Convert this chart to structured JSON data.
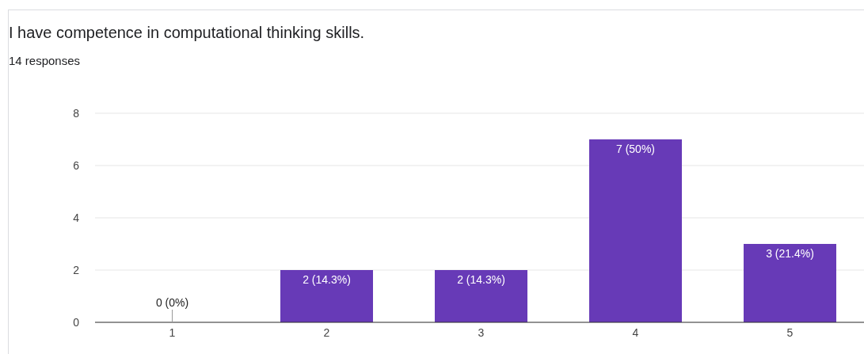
{
  "chart_data": {
    "type": "bar",
    "title": "I have competence in computational thinking skills.",
    "subtitle": "14 responses",
    "categories": [
      "1",
      "2",
      "3",
      "4",
      "5"
    ],
    "values": [
      0,
      2,
      2,
      7,
      3
    ],
    "value_labels": [
      "0 (0%)",
      "2 (14.3%)",
      "2 (14.3%)",
      "7 (50%)",
      "3 (21.4%)"
    ],
    "color": "#673ab7",
    "ylim": [
      0,
      8
    ],
    "yticks": [
      0,
      2,
      4,
      6,
      8
    ],
    "grid": "y"
  }
}
